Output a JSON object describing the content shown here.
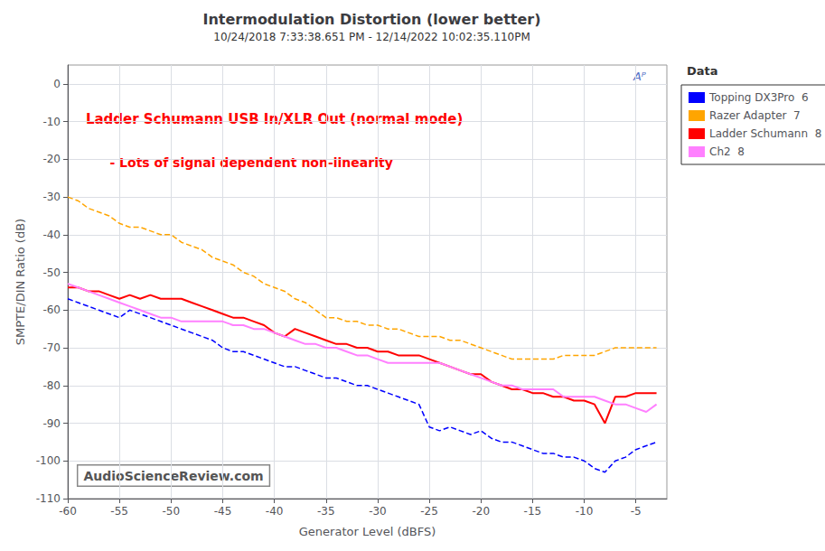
{
  "chart_data": {
    "type": "line",
    "title": "Intermodulation Distortion (lower better)",
    "subtitle": "10/24/2018 7:33:38.651 PM - 12/14/2022 10:02:35.110PM",
    "xlabel": "Generator Level (dBFS)",
    "ylabel": "SMPTE/DIN Ratio (dB)",
    "annotations": [
      "Ladder Schumann USB In/XLR Out (normal mode)",
      "- Lots of signal dependent non-linearity",
      "AudioScienceReview.com",
      "Aᴾ"
    ],
    "legend_title": "Data",
    "legend": "right",
    "grid": true,
    "xlim": [
      -60,
      -2
    ],
    "ylim": [
      -110,
      5
    ],
    "xticks": [
      -60,
      -55,
      -50,
      -45,
      -40,
      -35,
      -30,
      -25,
      -20,
      -15,
      -10,
      -5
    ],
    "yticks": [
      0,
      -10,
      -20,
      -30,
      -40,
      -50,
      -60,
      -70,
      -80,
      -90,
      -100,
      -110
    ],
    "x": [
      -60,
      -59,
      -58,
      -57,
      -56,
      -55,
      -54,
      -53,
      -52,
      -51,
      -50,
      -49,
      -48,
      -47,
      -46,
      -45,
      -44,
      -43,
      -42,
      -41,
      -40,
      -39,
      -38,
      -37,
      -36,
      -35,
      -34,
      -33,
      -32,
      -31,
      -30,
      -29,
      -28,
      -27,
      -26,
      -25,
      -24,
      -23,
      -22,
      -21,
      -20,
      -19,
      -18,
      -17,
      -16,
      -15,
      -14,
      -13,
      -12,
      -11,
      -10,
      -9,
      -8,
      -7,
      -6,
      -5,
      -4,
      -3
    ],
    "series": [
      {
        "name": "Topping DX3Pro  6",
        "color": "#0000FF",
        "line_style": "dashed",
        "values": [
          -57,
          -58,
          -59,
          -60,
          -61,
          -62,
          -60,
          -61,
          -62,
          -63,
          -64,
          -65,
          -66,
          -67,
          -68,
          -70,
          -71,
          -71,
          -72,
          -73,
          -74,
          -75,
          -75,
          -76,
          -77,
          -78,
          -78,
          -79,
          -80,
          -80,
          -81,
          -82,
          -83,
          -84,
          -85,
          -91,
          -92,
          -91,
          -92,
          -93,
          -92,
          -94,
          -95,
          -95,
          -96,
          -97,
          -98,
          -98,
          -99,
          -99,
          -100,
          -102,
          -103,
          -100,
          -99,
          -97,
          -96,
          -95
        ]
      },
      {
        "name": "Razer Adapter  7",
        "color": "#FFA500",
        "line_style": "dashed",
        "values": [
          -30,
          -31,
          -33,
          -34,
          -35,
          -37,
          -38,
          -38,
          -39,
          -40,
          -40,
          -42,
          -43,
          -44,
          -46,
          -47,
          -48,
          -50,
          -51,
          -53,
          -54,
          -55,
          -57,
          -58,
          -60,
          -62,
          -62,
          -63,
          -63,
          -64,
          -64,
          -65,
          -65,
          -66,
          -67,
          -67,
          -67,
          -68,
          -68,
          -69,
          -70,
          -71,
          -72,
          -73,
          -73,
          -73,
          -73,
          -73,
          -72,
          -72,
          -72,
          -72,
          -71,
          -70,
          -70,
          -70,
          -70,
          -70
        ]
      },
      {
        "name": "Ladder Schumann  8",
        "color": "#FF0000",
        "line_style": "solid",
        "values": [
          -54,
          -54,
          -55,
          -55,
          -56,
          -57,
          -56,
          -57,
          -56,
          -57,
          -57,
          -57,
          -58,
          -59,
          -60,
          -61,
          -62,
          -62,
          -63,
          -64,
          -66,
          -67,
          -65,
          -66,
          -67,
          -68,
          -69,
          -69,
          -70,
          -70,
          -71,
          -71,
          -72,
          -72,
          -72,
          -73,
          -74,
          -75,
          -76,
          -77,
          -77,
          -79,
          -80,
          -81,
          -81,
          -82,
          -82,
          -83,
          -83,
          -84,
          -84,
          -85,
          -90,
          -83,
          -83,
          -82,
          -82,
          -82
        ]
      },
      {
        "name": "Ch2  8",
        "color": "#FF80FF",
        "line_style": "solid",
        "values": [
          -53,
          -54,
          -55,
          -56,
          -57,
          -58,
          -59,
          -60,
          -61,
          -62,
          -62,
          -63,
          -63,
          -63,
          -63,
          -63,
          -64,
          -64,
          -65,
          -65,
          -66,
          -67,
          -68,
          -69,
          -69,
          -70,
          -70,
          -71,
          -72,
          -72,
          -73,
          -74,
          -74,
          -74,
          -74,
          -74,
          -74,
          -75,
          -76,
          -77,
          -78,
          -79,
          -80,
          -80,
          -81,
          -81,
          -81,
          -81,
          -83,
          -83,
          -83,
          -83,
          -84,
          -85,
          -85,
          -86,
          -87,
          -85
        ]
      }
    ]
  }
}
